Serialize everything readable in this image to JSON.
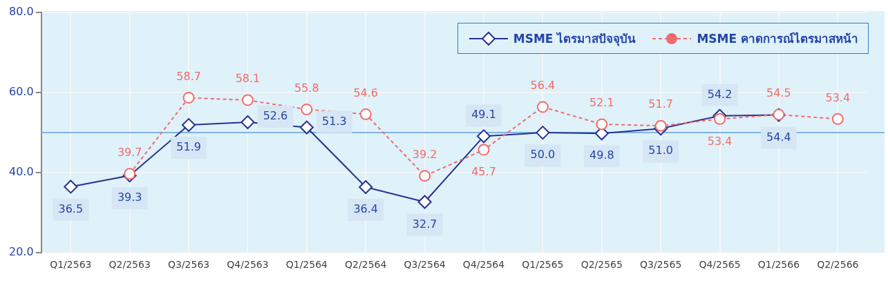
{
  "chart_data": {
    "type": "line",
    "categories": [
      "Q1/2563",
      "Q2/2563",
      "Q3/2563",
      "Q4/2563",
      "Q1/2564",
      "Q2/2564",
      "Q3/2564",
      "Q4/2564",
      "Q1/2565",
      "Q2/2565",
      "Q3/2565",
      "Q4/2565",
      "Q1/2566",
      "Q2/2566"
    ],
    "series": [
      {
        "name": "MSME ไตรมาสปัจจุบัน",
        "color": "#27318f",
        "marker": "diamond",
        "line_style": "solid",
        "values": [
          36.5,
          39.3,
          51.9,
          52.6,
          51.3,
          36.4,
          32.7,
          49.1,
          50.0,
          49.8,
          51.0,
          54.2,
          54.4,
          null
        ],
        "value_labels": [
          "36.5",
          "39.3",
          "51.9",
          "52.6",
          "51.3",
          "36.4",
          "32.7",
          "49.1",
          "50.0",
          "49.8",
          "51.0",
          "54.2",
          "54.4",
          null
        ]
      },
      {
        "name": "MSME คาดการณ์ไตรมาสหน้า",
        "color": "#f26b6b",
        "marker": "circle",
        "line_style": "dashed",
        "values": [
          null,
          39.7,
          58.7,
          58.1,
          55.8,
          54.6,
          39.2,
          45.7,
          56.4,
          52.1,
          51.7,
          53.4,
          54.5,
          53.4
        ],
        "value_labels": [
          null,
          "39.7",
          "58.7",
          "58.1",
          "55.8",
          "54.6",
          "39.2",
          "45.7",
          "56.4",
          "52.1",
          "51.7",
          "53.4",
          "54.5",
          "53.4"
        ]
      }
    ],
    "ylim": [
      20,
      80
    ],
    "yticks": [
      {
        "value": 20,
        "label": "20.0"
      },
      {
        "value": 40,
        "label": "40.0"
      },
      {
        "value": 60,
        "label": "60.0"
      },
      {
        "value": 80,
        "label": "80.0"
      }
    ],
    "ref_lines": [
      {
        "axis": "y",
        "value": 50,
        "color": "#7fb3e3"
      }
    ],
    "grid": true,
    "legend": "top right"
  }
}
